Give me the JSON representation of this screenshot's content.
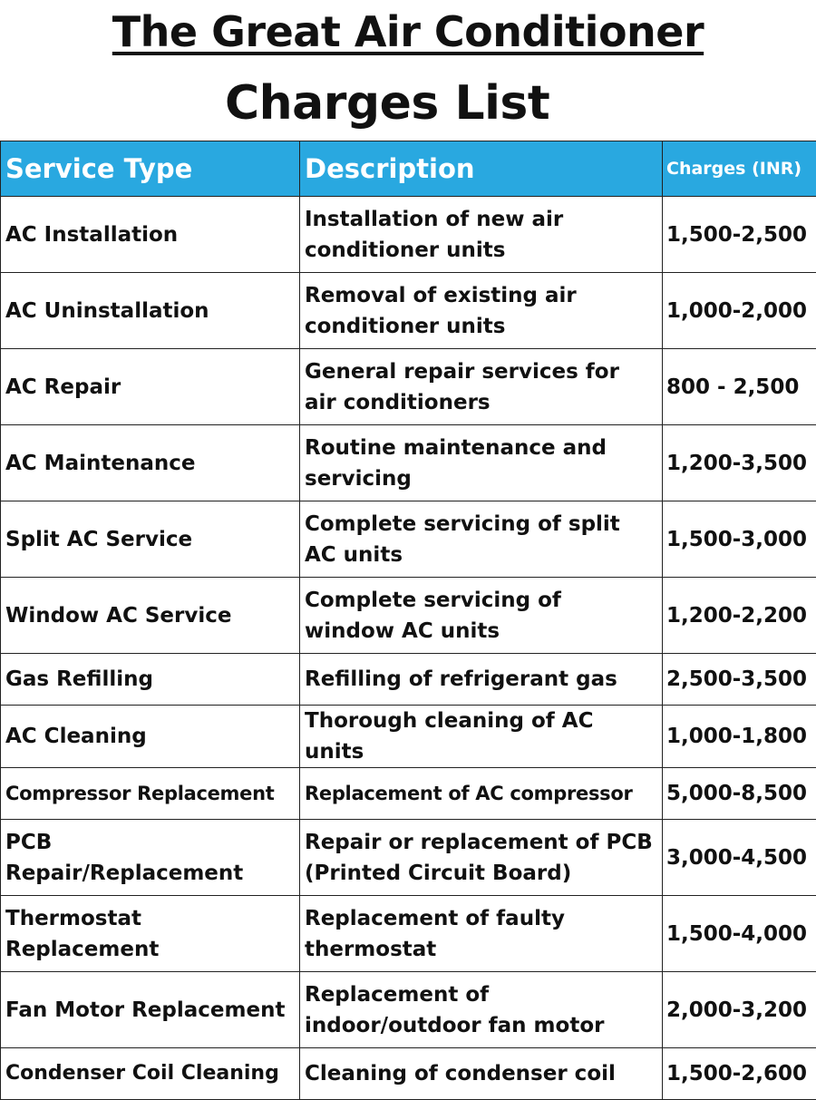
{
  "title": {
    "line1": "The Great Air Conditioner",
    "line2": "Charges List"
  },
  "table": {
    "headers": [
      "Service Type",
      "Description",
      "Charges (INR)"
    ],
    "rows": [
      {
        "service": "AC Installation",
        "description": "Installation of new air conditioner units",
        "charges": "1,500-2,500"
      },
      {
        "service": "AC Uninstallation",
        "description": "Removal of existing air conditioner units",
        "charges": "1,000-2,000"
      },
      {
        "service": "AC Repair",
        "description": "General repair services for air conditioners",
        "charges": "800 - 2,500"
      },
      {
        "service": "AC Maintenance",
        "description": "Routine maintenance and servicing",
        "charges": "1,200-3,500"
      },
      {
        "service": "Split AC Service",
        "description": "Complete servicing of split AC units",
        "charges": "1,500-3,000"
      },
      {
        "service": "Window AC Service",
        "description": "Complete servicing of window AC units",
        "charges": "1,200-2,200"
      },
      {
        "service": "Gas Refilling",
        "description": "Refilling of refrigerant gas",
        "charges": "2,500-3,500"
      },
      {
        "service": "AC Cleaning",
        "description": "Thorough cleaning of AC units",
        "charges": "1,000-1,800"
      },
      {
        "service": "Compressor Replacement",
        "description": "Replacement of AC compressor",
        "charges": "5,000-8,500"
      },
      {
        "service": "PCB Repair/Replacement",
        "description": "Repair or replacement of PCB (Printed Circuit Board)",
        "charges": "3,000-4,500"
      },
      {
        "service": "Thermostat Replacement",
        "description": "Replacement of faulty thermostat",
        "charges": "1,500-4,000"
      },
      {
        "service": "Fan Motor Replacement",
        "description": "Replacement of indoor/outdoor fan motor",
        "charges": "2,000-3,200"
      },
      {
        "service": "Condenser Coil Cleaning",
        "description": "Cleaning of condenser coil",
        "charges": "1,500-2,600"
      }
    ]
  },
  "colors": {
    "header_bg": "#29a8e0",
    "header_text": "#ffffff",
    "body_text": "#111111"
  }
}
